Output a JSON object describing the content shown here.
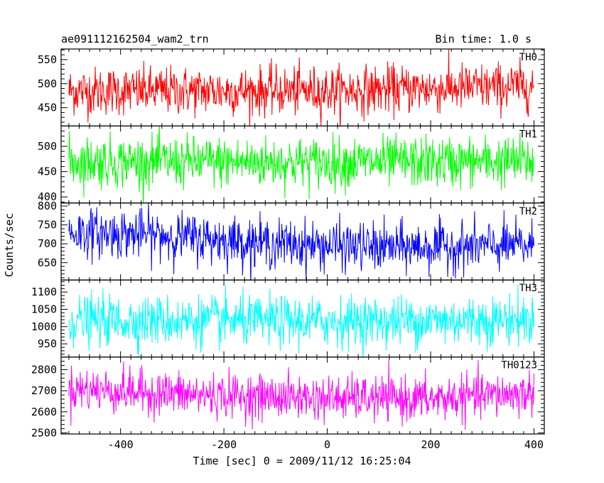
{
  "chart_data": {
    "type": "line",
    "title": "ae091112162504_wam2_trn",
    "subtitle": "Bin time: 1.0 s",
    "xlabel": "Time [sec] 0 = 2009/11/12 16:25:04",
    "ylabel": "Counts/sec",
    "xlim": [
      -515,
      420
    ],
    "x_ticks": [
      -400,
      -200,
      0,
      200,
      400
    ],
    "x_range": [
      -500,
      400
    ],
    "bin_time": 1.0,
    "grid": false,
    "panels": [
      {
        "name": "TH0",
        "color": "#ff0000",
        "ylim": [
          412,
          572
        ],
        "y_ticks": [
          450,
          500,
          550
        ],
        "trend": [
          [
            -500,
            485
          ],
          [
            -300,
            485
          ],
          [
            0,
            485
          ],
          [
            200,
            490
          ],
          [
            400,
            495
          ]
        ],
        "noise_sd": 25
      },
      {
        "name": "TH1",
        "color": "#00ff00",
        "ylim": [
          388,
          540
        ],
        "y_ticks": [
          400,
          450,
          500
        ],
        "trend": [
          [
            -500,
            470
          ],
          [
            0,
            468
          ],
          [
            400,
            470
          ]
        ],
        "noise_sd": 25
      },
      {
        "name": "TH2",
        "color": "#0000ff",
        "ylim": [
          604,
          808
        ],
        "y_ticks": [
          650,
          700,
          750,
          800
        ],
        "trend": [
          [
            -500,
            730
          ],
          [
            -350,
            725
          ],
          [
            -100,
            700
          ],
          [
            100,
            690
          ],
          [
            400,
            695
          ]
        ],
        "noise_sd": 32
      },
      {
        "name": "TH3",
        "color": "#00ffff",
        "ylim": [
          912,
          1135
        ],
        "y_ticks": [
          950,
          1000,
          1050,
          1100
        ],
        "trend": [
          [
            -500,
            1018
          ],
          [
            0,
            1015
          ],
          [
            400,
            1020
          ]
        ],
        "noise_sd": 36
      },
      {
        "name": "TH0123",
        "color": "#ff00ff",
        "ylim": [
          2495,
          2860
        ],
        "y_ticks": [
          2500,
          2600,
          2700,
          2800
        ],
        "trend": [
          [
            -500,
            2710
          ],
          [
            -250,
            2680
          ],
          [
            0,
            2665
          ],
          [
            200,
            2660
          ],
          [
            400,
            2690
          ]
        ],
        "noise_sd": 52
      }
    ]
  }
}
